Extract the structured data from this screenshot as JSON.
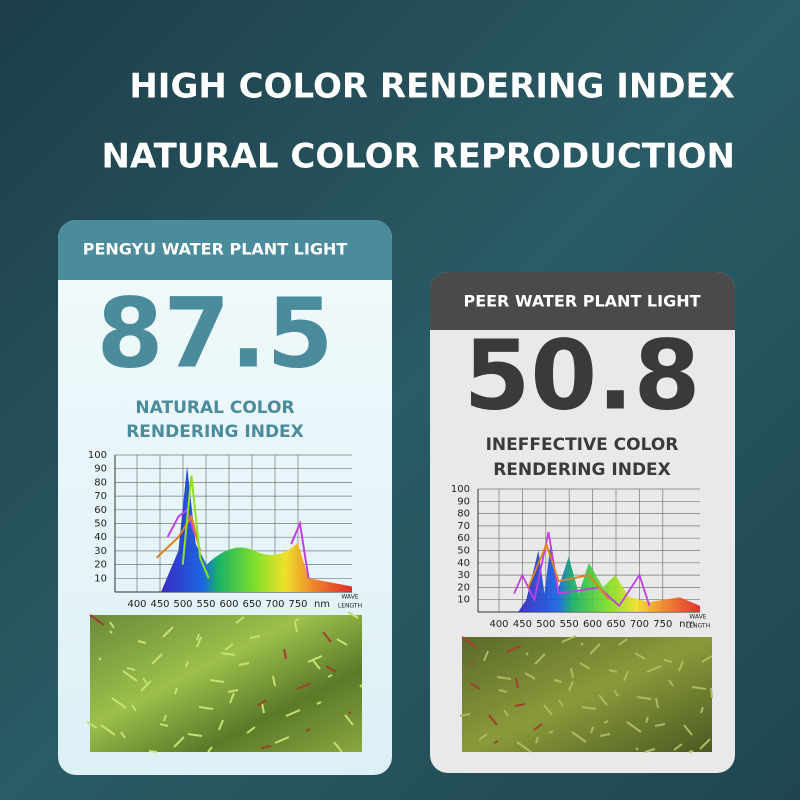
{
  "header": {
    "line1": "HIGH COLOR RENDERING INDEX",
    "line2": "NATURAL COLOR REPRODUCTION"
  },
  "cards": [
    {
      "title": "PENGYU WATER PLANT LIGHT",
      "score": 87.5,
      "label_lines": [
        "NATURAL COLOR",
        "RENDERING INDEX"
      ],
      "spectrum": {
        "yticks": [
          10,
          20,
          30,
          40,
          50,
          60,
          70,
          80,
          90,
          100
        ],
        "xticks": [
          400,
          450,
          500,
          550,
          600,
          650,
          700,
          750
        ],
        "x_unit": "nm",
        "x_axis_label": [
          "WAVE",
          "LENGTH"
        ]
      }
    },
    {
      "title": "PEER WATER PLANT LIGHT",
      "score": 50.8,
      "label_lines": [
        "INEFFECTIVE COLOR",
        "RENDERING INDEX"
      ],
      "spectrum": {
        "yticks": [
          10,
          20,
          30,
          40,
          50,
          60,
          70,
          80,
          90,
          100
        ],
        "xticks": [
          400,
          450,
          500,
          550,
          600,
          650,
          700,
          750
        ],
        "x_unit": "nm",
        "x_axis_label": [
          "WAVE",
          "LENGTH"
        ]
      }
    }
  ]
}
